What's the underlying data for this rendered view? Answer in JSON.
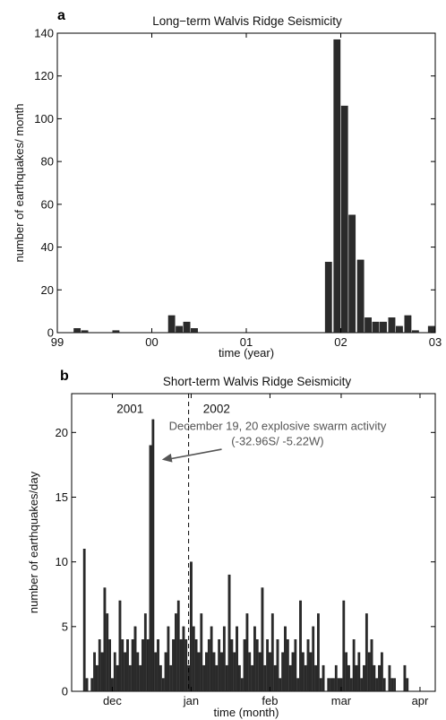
{
  "chart_data": [
    {
      "panel": "a",
      "type": "bar",
      "title": "Long−term Walvis Ridge Seismicity",
      "xlabel": "time (year)",
      "ylabel": "number of earthquakes/ month",
      "xlim": [
        1999,
        2003
      ],
      "ylim": [
        0,
        140
      ],
      "xticks": [
        1999,
        2000,
        2001,
        2002,
        2003
      ],
      "xtick_labels": [
        "99",
        "00",
        "01",
        "02",
        "03"
      ],
      "yticks": [
        0,
        20,
        40,
        60,
        80,
        100,
        120,
        140
      ],
      "ytick_labels": [
        "0",
        "20",
        "40",
        "60",
        "80",
        "100",
        "120",
        "140"
      ],
      "bar_width": 0.07,
      "grid": false,
      "x": [
        1999.21,
        1999.29,
        1999.62,
        2000.21,
        2000.29,
        2000.37,
        2000.45,
        2001.87,
        2001.96,
        2002.04,
        2002.12,
        2002.21,
        2002.29,
        2002.37,
        2002.45,
        2002.54,
        2002.62,
        2002.71,
        2002.79,
        2002.96
      ],
      "values": [
        2,
        1,
        1,
        8,
        3,
        5,
        2,
        33,
        137,
        106,
        55,
        34,
        7,
        5,
        5,
        7,
        3,
        8,
        1,
        3
      ]
    },
    {
      "panel": "b",
      "type": "bar",
      "title": "Short-term Walvis Ridge Seismicity",
      "xlabel": "time (month)",
      "ylabel": "number of earthquakes/day",
      "xlim": [
        0,
        143
      ],
      "ylim": [
        0,
        23
      ],
      "xticks": [
        16,
        47,
        78,
        106,
        137
      ],
      "xtick_labels": [
        "dec",
        "jan",
        "feb",
        "mar",
        "apr"
      ],
      "yticks": [
        0,
        5,
        10,
        15,
        20
      ],
      "ytick_labels": [
        "0",
        "5",
        "10",
        "15",
        "20"
      ],
      "grid": false,
      "year_divider_x": 46,
      "year_labels": [
        {
          "text": "2001",
          "x": 23,
          "y": 21.5
        },
        {
          "text": "2002",
          "x": 57,
          "y": 21.5
        }
      ],
      "annotation": {
        "lines": [
          "December 19, 20 explosive swarm activity",
          "(-32.96S/ -5.22W)"
        ],
        "text_x": 81,
        "text_y": 20.2,
        "arrow_from": [
          59,
          18.7
        ],
        "arrow_to": [
          35.5,
          17.9
        ],
        "color": "#555555"
      },
      "x": [
        5,
        6,
        8,
        9,
        10,
        11,
        12,
        13,
        14,
        15,
        16,
        17,
        18,
        19,
        20,
        21,
        22,
        23,
        24,
        25,
        26,
        27,
        28,
        29,
        30,
        31,
        32,
        33,
        34,
        35,
        36,
        37,
        38,
        39,
        40,
        41,
        42,
        43,
        44,
        45,
        46,
        47,
        48,
        49,
        50,
        51,
        52,
        53,
        54,
        55,
        56,
        57,
        58,
        59,
        60,
        61,
        62,
        63,
        64,
        65,
        66,
        67,
        68,
        69,
        70,
        71,
        72,
        73,
        74,
        75,
        76,
        77,
        78,
        79,
        80,
        81,
        82,
        83,
        84,
        85,
        86,
        87,
        88,
        89,
        90,
        91,
        92,
        93,
        94,
        95,
        96,
        97,
        98,
        99,
        101,
        102,
        103,
        104,
        105,
        106,
        107,
        108,
        109,
        110,
        111,
        112,
        113,
        114,
        115,
        116,
        117,
        118,
        119,
        120,
        121,
        122,
        123,
        125,
        126,
        127,
        131,
        132
      ],
      "values": [
        11,
        1,
        1,
        3,
        2,
        4,
        3,
        8,
        6,
        4,
        1,
        3,
        2,
        7,
        4,
        3,
        4,
        2,
        4,
        5,
        3,
        2,
        4,
        6,
        4,
        19,
        21,
        3,
        4,
        2,
        1,
        3,
        5,
        2,
        4,
        6,
        7,
        4,
        5,
        4,
        2,
        10,
        5,
        4,
        3,
        6,
        2,
        3,
        4,
        5,
        3,
        2,
        4,
        3,
        5,
        2,
        9,
        4,
        3,
        5,
        2,
        1,
        4,
        6,
        3,
        2,
        5,
        4,
        3,
        8,
        2,
        4,
        3,
        6,
        2,
        4,
        1,
        3,
        5,
        4,
        2,
        3,
        4,
        1,
        7,
        3,
        2,
        4,
        3,
        5,
        2,
        6,
        1,
        2,
        1,
        1,
        1,
        2,
        1,
        1,
        7,
        3,
        2,
        1,
        4,
        2,
        3,
        1,
        2,
        6,
        3,
        4,
        2,
        1,
        2,
        3,
        1,
        2,
        1,
        1,
        2,
        1
      ]
    }
  ]
}
